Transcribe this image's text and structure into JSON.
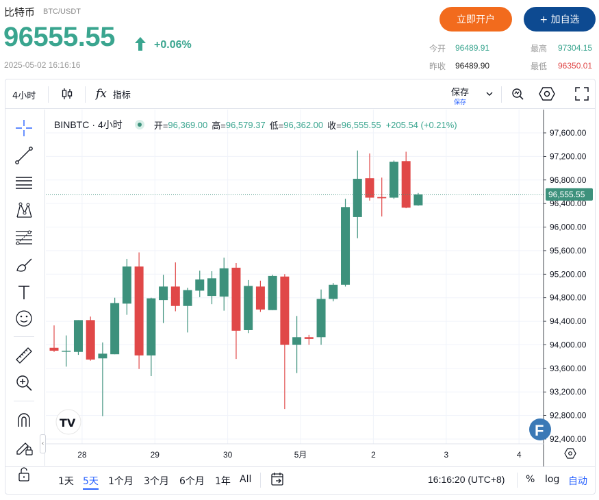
{
  "header": {
    "name": "比特币",
    "pair": "BTC/USDT",
    "price": "96555.55",
    "change": "+0.06%",
    "datetime": "2025-05-02 16:16:16"
  },
  "buttons": {
    "open_account": "立即开户",
    "add_watch": "+ 加自选"
  },
  "stats": {
    "open_label": "今开",
    "open_value": "96489.91",
    "prev_close_label": "昨收",
    "prev_close_value": "96489.90",
    "high_label": "最高",
    "high_value": "97304.15",
    "low_label": "最低",
    "low_value": "96350.01"
  },
  "toolbar": {
    "interval": "4小时",
    "indicators": "指标",
    "save": "保存",
    "save_sub": "保存"
  },
  "legend": {
    "symbol": "BINBTC",
    "interval": "4小时",
    "open_label": "开=",
    "open": "96,369.00",
    "high_label": "高=",
    "high": "96,579.37",
    "low_label": "低=",
    "low": "96,362.00",
    "close_label": "收=",
    "close": "96,555.55",
    "change": "+205.54 (+0.21%)"
  },
  "price_tag": "96,555.55",
  "bottom": {
    "ranges": [
      "1天",
      "5天",
      "1个月",
      "3个月",
      "6个月",
      "1年",
      "All"
    ],
    "active_range": "5天",
    "clock": "16:16:20 (UTC+8)",
    "percent": "%",
    "log": "log",
    "auto": "自动"
  },
  "colors": {
    "up": "#3d917c",
    "down": "#e04848",
    "accent": "#2962ff",
    "brand_orange": "#f26b1d",
    "brand_blue": "#0d4a91"
  },
  "chart_data": {
    "type": "candlestick",
    "interval": "4h",
    "y_ticks": [
      97600,
      97200,
      96800,
      96400,
      96000,
      95600,
      95200,
      94800,
      94400,
      94000,
      93600,
      93200,
      92800,
      92400
    ],
    "ylim": [
      92300,
      97900
    ],
    "x_tick_labels": [
      "28",
      "29",
      "30",
      "5月",
      "2",
      "3",
      "4"
    ],
    "candles": [
      {
        "o": 93950,
        "h": 94330,
        "l": 93880,
        "c": 93900
      },
      {
        "o": 93900,
        "h": 94160,
        "l": 93630,
        "c": 93900
      },
      {
        "o": 93880,
        "h": 94420,
        "l": 93830,
        "c": 94420
      },
      {
        "o": 94420,
        "h": 94480,
        "l": 93730,
        "c": 93750
      },
      {
        "o": 93770,
        "h": 94040,
        "l": 92790,
        "c": 93850
      },
      {
        "o": 93840,
        "h": 94800,
        "l": 93840,
        "c": 94710
      },
      {
        "o": 94700,
        "h": 95460,
        "l": 94510,
        "c": 95330
      },
      {
        "o": 95330,
        "h": 95570,
        "l": 93590,
        "c": 93820
      },
      {
        "o": 93820,
        "h": 94800,
        "l": 93470,
        "c": 94790
      },
      {
        "o": 94760,
        "h": 95190,
        "l": 94370,
        "c": 94990
      },
      {
        "o": 94990,
        "h": 95400,
        "l": 94570,
        "c": 94660
      },
      {
        "o": 94660,
        "h": 94970,
        "l": 94210,
        "c": 94930
      },
      {
        "o": 94920,
        "h": 95260,
        "l": 94810,
        "c": 95110
      },
      {
        "o": 94830,
        "h": 95250,
        "l": 94690,
        "c": 95130
      },
      {
        "o": 94820,
        "h": 95480,
        "l": 94580,
        "c": 95300
      },
      {
        "o": 95310,
        "h": 95390,
        "l": 93760,
        "c": 94240
      },
      {
        "o": 94250,
        "h": 95100,
        "l": 94200,
        "c": 95000
      },
      {
        "o": 94990,
        "h": 95090,
        "l": 94560,
        "c": 94600
      },
      {
        "o": 94590,
        "h": 95190,
        "l": 94590,
        "c": 95170
      },
      {
        "o": 95160,
        "h": 95200,
        "l": 92910,
        "c": 94000
      },
      {
        "o": 94000,
        "h": 94490,
        "l": 93520,
        "c": 94130
      },
      {
        "o": 94130,
        "h": 94170,
        "l": 94000,
        "c": 94100
      },
      {
        "o": 94130,
        "h": 94940,
        "l": 94000,
        "c": 94780
      },
      {
        "o": 94780,
        "h": 95050,
        "l": 94740,
        "c": 95020
      },
      {
        "o": 95020,
        "h": 96480,
        "l": 94990,
        "c": 96340
      },
      {
        "o": 96170,
        "h": 97300,
        "l": 95810,
        "c": 96820
      },
      {
        "o": 96830,
        "h": 97250,
        "l": 96450,
        "c": 96500
      },
      {
        "o": 96510,
        "h": 96840,
        "l": 96180,
        "c": 96490
      },
      {
        "o": 96500,
        "h": 97130,
        "l": 96480,
        "c": 97110
      },
      {
        "o": 97120,
        "h": 97280,
        "l": 96320,
        "c": 96330
      },
      {
        "o": 96369,
        "h": 96579,
        "l": 96362,
        "c": 96555
      }
    ]
  }
}
